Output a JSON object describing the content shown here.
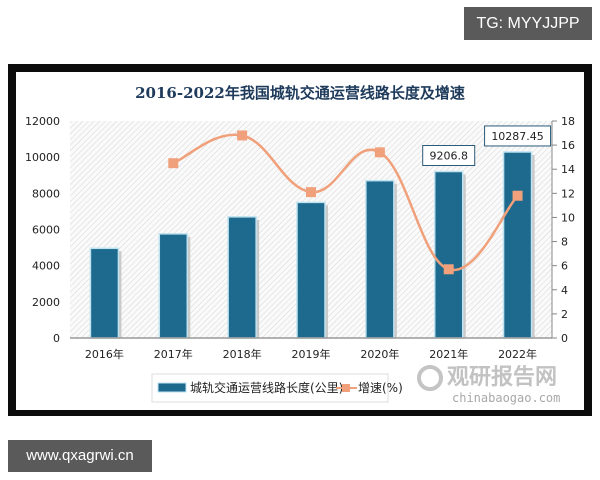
{
  "watermarks": {
    "top_tag": "TG: MYYJJPP",
    "bottom_tag": "www.qxagrwi.cn",
    "site_cn": "观研报告网",
    "site_en": "chinabaogao.com"
  },
  "colors": {
    "bar": "#1d6a8e",
    "bar_edge": "#bfe3f0",
    "line": "#f0a07a",
    "marker": "#f0a07a",
    "frame": "#0c0c0c",
    "title": "#1f3b5c"
  },
  "chart_data": {
    "type": "bar+line",
    "title": "2016-2022年我国城轨交通运营线路长度及增速",
    "categories": [
      "2016年",
      "2017年",
      "2018年",
      "2019年",
      "2020年",
      "2021年",
      "2022年"
    ],
    "series": [
      {
        "name": "城轨交通运营线路长度(公里)",
        "type": "bar",
        "axis": "left",
        "values": [
          4960,
          5760,
          6700,
          7500,
          8700,
          9206.8,
          10287.45
        ]
      },
      {
        "name": "增速(%)",
        "type": "line",
        "axis": "right",
        "values": [
          null,
          14.5,
          16.8,
          12.1,
          15.4,
          5.7,
          11.8
        ]
      }
    ],
    "data_labels": [
      {
        "category": "2021年",
        "text": "9206.8"
      },
      {
        "category": "2022年",
        "text": "10287.45"
      }
    ],
    "left_axis": {
      "ticks": [
        "0",
        "2000",
        "4000",
        "6000",
        "8000",
        "10000",
        "12000"
      ],
      "ylim": [
        0,
        12000
      ]
    },
    "right_axis": {
      "ticks": [
        "0",
        "2",
        "4",
        "6",
        "8",
        "10",
        "12",
        "14",
        "16",
        "18"
      ],
      "ylim": [
        0,
        18
      ]
    },
    "legend": {
      "position": "bottom",
      "entries": [
        "城轨交通运营线路长度(公里)",
        "增速(%)"
      ]
    },
    "grid": false,
    "background": "diagonal hatch"
  }
}
